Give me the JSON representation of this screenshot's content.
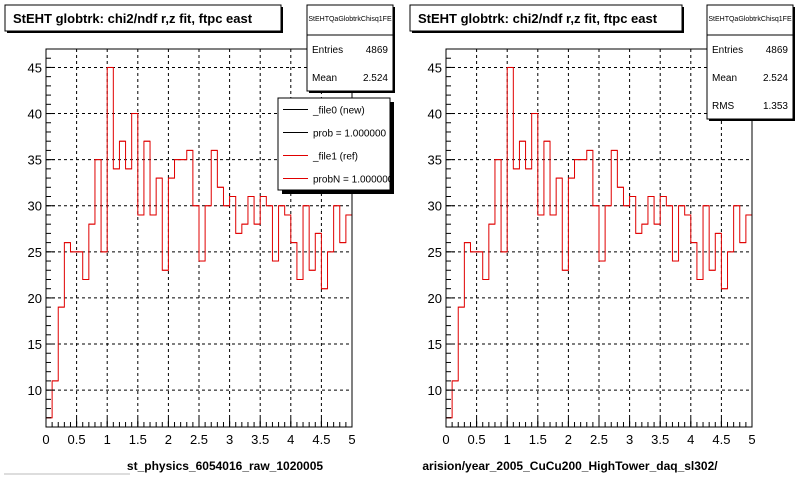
{
  "colors": {
    "ref_line": "#e00000",
    "new_line": "#000000",
    "frame": "#000000",
    "grid": "#000000"
  },
  "chart_data": [
    {
      "type": "histogram",
      "title": "StEHT globtrk: chi2/ndf r,z fit, ftpc east",
      "stats_box": {
        "name": "StEHTQaGlobtrkChisq1FE",
        "rows": [
          {
            "label": "Entries",
            "value": "4869"
          },
          {
            "label": "Mean",
            "value": "2.524"
          }
        ]
      },
      "legend": {
        "placement": "top-right",
        "entries": [
          {
            "label": "_file0 (new)",
            "color": "#000000"
          },
          {
            "label": "prob = 1.000000",
            "color": "#000000"
          },
          {
            "label": "_file1 (ref)",
            "color": "#e00000"
          },
          {
            "label": "probN = 1.000000",
            "color": "#e00000"
          }
        ]
      },
      "xlabel": "st_physics_6054016_raw_1020005",
      "xlim": [
        0,
        5
      ],
      "ylim": [
        6,
        47
      ],
      "x_ticks": [
        "0",
        "0.5",
        "1",
        "1.5",
        "2",
        "2.5",
        "3",
        "3.5",
        "4",
        "4.5",
        "5"
      ],
      "y_ticks": [
        "10",
        "15",
        "20",
        "25",
        "30",
        "35",
        "40",
        "45"
      ],
      "grid": true,
      "bin_edges": [
        0,
        5
      ],
      "n_bins": 50,
      "series": [
        {
          "values": [
            7,
            11,
            19,
            26,
            25,
            25,
            22,
            28,
            35,
            25,
            45,
            34,
            37,
            34,
            40,
            29,
            37,
            29,
            33,
            23,
            33,
            35,
            35,
            36,
            30,
            24,
            30,
            36,
            32,
            30,
            31,
            27,
            28,
            31,
            28,
            31,
            30,
            24,
            30,
            29,
            26,
            22,
            30,
            23,
            27,
            21,
            25,
            30,
            26,
            29
          ]
        }
      ]
    },
    {
      "type": "histogram",
      "title": "StEHT globtrk: chi2/ndf r,z fit, ftpc east",
      "stats_box": {
        "name": "StEHTQaGlobtrkChisq1FE",
        "rows": [
          {
            "label": "Entries",
            "value": "4869"
          },
          {
            "label": "Mean",
            "value": "2.524"
          },
          {
            "label": "RMS",
            "value": "1.353"
          }
        ]
      },
      "xlabel": "arision/year_2005_CuCu200_HighTower_daq_sl302/",
      "xlim": [
        0,
        5
      ],
      "ylim": [
        6,
        47
      ],
      "x_ticks": [
        "0",
        "0.5",
        "1",
        "1.5",
        "2",
        "2.5",
        "3",
        "3.5",
        "4",
        "4.5",
        "5"
      ],
      "y_ticks": [
        "10",
        "15",
        "20",
        "25",
        "30",
        "35",
        "40",
        "45"
      ],
      "grid": true,
      "bin_edges": [
        0,
        5
      ],
      "n_bins": 50,
      "series": [
        {
          "values": [
            7,
            11,
            19,
            26,
            25,
            25,
            22,
            28,
            35,
            25,
            45,
            34,
            37,
            34,
            40,
            29,
            37,
            29,
            33,
            23,
            33,
            35,
            35,
            36,
            30,
            24,
            30,
            36,
            32,
            30,
            31,
            27,
            28,
            31,
            28,
            31,
            30,
            24,
            30,
            29,
            26,
            22,
            30,
            23,
            27,
            21,
            25,
            30,
            26,
            29
          ]
        }
      ]
    }
  ]
}
